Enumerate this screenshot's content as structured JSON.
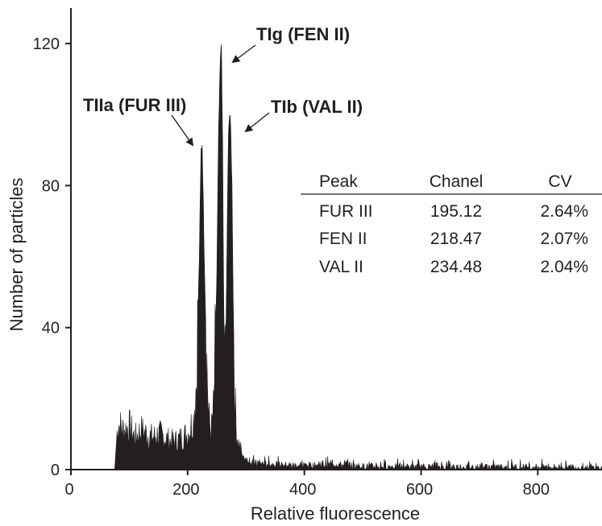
{
  "chart_data": {
    "type": "area",
    "title": "",
    "xlabel": "Relative fluorescence",
    "ylabel": "Number of particles",
    "xlim": [
      0,
      910
    ],
    "ylim": [
      0,
      130
    ],
    "x_ticks": [
      "0",
      "200",
      "400",
      "600",
      "800"
    ],
    "y_ticks": [
      "0",
      "40",
      "80",
      "120"
    ],
    "grid": false,
    "legend": "none",
    "fill_color": "#231f20",
    "series": [
      {
        "x": [
          75,
          80,
          90,
          100,
          110,
          120,
          130,
          140,
          150,
          160,
          170,
          180,
          190,
          200,
          205,
          210,
          215,
          220,
          223,
          225,
          228,
          232,
          236,
          240,
          245,
          250,
          253,
          256,
          258,
          260,
          262,
          265,
          268,
          270,
          272,
          274,
          276,
          278,
          280,
          283,
          286,
          290,
          295,
          300,
          310,
          350,
          400,
          450,
          500,
          600,
          700,
          800,
          910
        ],
        "y": [
          0,
          13,
          11,
          12,
          9,
          11,
          10,
          9,
          10,
          9,
          8,
          8,
          9,
          10,
          12,
          14,
          25,
          60,
          90,
          92,
          65,
          35,
          15,
          10,
          18,
          55,
          95,
          115,
          120,
          90,
          40,
          30,
          70,
          97,
          100,
          95,
          80,
          50,
          25,
          12,
          8,
          6,
          4,
          3,
          2,
          1.5,
          1.2,
          1.5,
          1,
          0.8,
          0.8,
          0.8,
          0.5
        ]
      }
    ],
    "peak_labels": [
      {
        "text": "TIIa (FUR III)",
        "x": 223,
        "y": 92
      },
      {
        "text": "TIg (FEN II)",
        "x": 262,
        "y": 120
      },
      {
        "text": "TIb (VAL II)",
        "x": 278,
        "y": 100
      }
    ],
    "table": {
      "headers": [
        "Peak",
        "Chanel",
        "CV"
      ],
      "rows": [
        [
          "FUR III",
          "195.12",
          "2.64%"
        ],
        [
          "FEN II",
          "218.47",
          "2.07%"
        ],
        [
          "VAL II",
          "234.48",
          "2.04%"
        ]
      ]
    }
  }
}
